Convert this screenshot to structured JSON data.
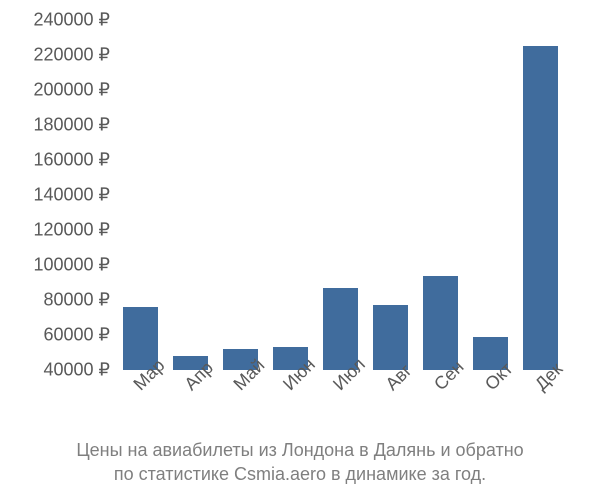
{
  "chart": {
    "type": "bar",
    "background_color": "#ffffff",
    "bar_color": "#406c9d",
    "axis_text_color": "#595959",
    "caption_color": "#7f7f7f",
    "label_fontsize": 18,
    "caption_fontsize": 18,
    "bar_width": 0.7,
    "y": {
      "min": 40000,
      "max": 240000,
      "step": 20000,
      "ticks": [
        40000,
        60000,
        80000,
        100000,
        120000,
        140000,
        160000,
        180000,
        200000,
        220000,
        240000
      ],
      "tick_labels": [
        "40000 ₽",
        "60000 ₽",
        "80000 ₽",
        "100000 ₽",
        "120000 ₽",
        "140000 ₽",
        "160000 ₽",
        "180000 ₽",
        "200000 ₽",
        "220000 ₽",
        "240000 ₽"
      ]
    },
    "x": {
      "labels": [
        "Мар",
        "Апр",
        "Май",
        "Июн",
        "Июл",
        "Авг",
        "Сен",
        "Окт",
        "Дек"
      ]
    },
    "values": [
      76000,
      48000,
      52000,
      53000,
      87000,
      77000,
      94000,
      59000,
      225000
    ],
    "caption_line1": "Цены на авиабилеты из Лондона в Далянь и обратно",
    "caption_line2": "по статистике Csmia.aero в динамике за год."
  }
}
